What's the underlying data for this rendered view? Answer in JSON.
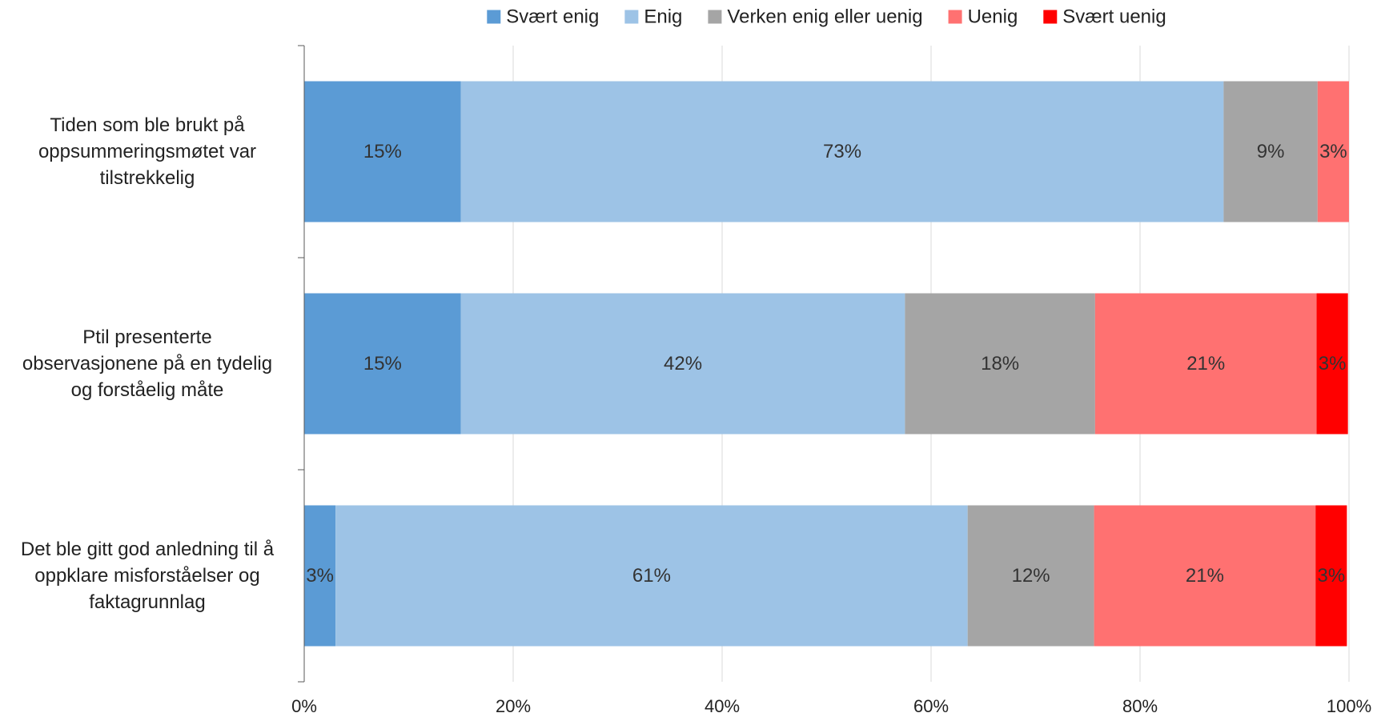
{
  "chart_data": {
    "type": "bar",
    "orientation": "horizontal",
    "stacked": "percent",
    "title": "",
    "xlabel": "",
    "ylabel": "",
    "xlim": [
      0,
      100
    ],
    "x_ticks": [
      "0%",
      "20%",
      "40%",
      "60%",
      "80%",
      "100%"
    ],
    "grid": "vertical",
    "legend_position": "top",
    "categories": [
      [
        "Tiden som ble brukt på",
        "oppsummeringsmøtet var",
        "tilstrekkelig"
      ],
      [
        "Ptil presenterte",
        "observasjonene på en tydelig",
        "og forståelig måte"
      ],
      [
        "Det ble gitt god anledning til å",
        "oppklare misforståelser og",
        "faktagrunnlag"
      ]
    ],
    "series": [
      {
        "name": "Svært enig",
        "color": "#5B9BD5",
        "values": [
          15,
          15,
          3
        ],
        "labels": [
          "15%",
          "15%",
          "3%"
        ]
      },
      {
        "name": "Enig",
        "color": "#9DC3E6",
        "values": [
          73,
          42.5,
          60.5
        ],
        "labels": [
          "73%",
          "42%",
          "61%"
        ]
      },
      {
        "name": "Verken enig eller uenig",
        "color": "#A5A5A5",
        "values": [
          9,
          18.2,
          12.1
        ],
        "labels": [
          "9%",
          "18%",
          "12%"
        ]
      },
      {
        "name": "Uenig",
        "color": "#FF7171",
        "values": [
          3,
          21.2,
          21.2
        ],
        "labels": [
          "3%",
          "21%",
          "21%"
        ]
      },
      {
        "name": "Svært uenig",
        "color": "#FF0000",
        "values": [
          0,
          3,
          3
        ],
        "labels": [
          "",
          "3%",
          "3%"
        ]
      }
    ]
  }
}
